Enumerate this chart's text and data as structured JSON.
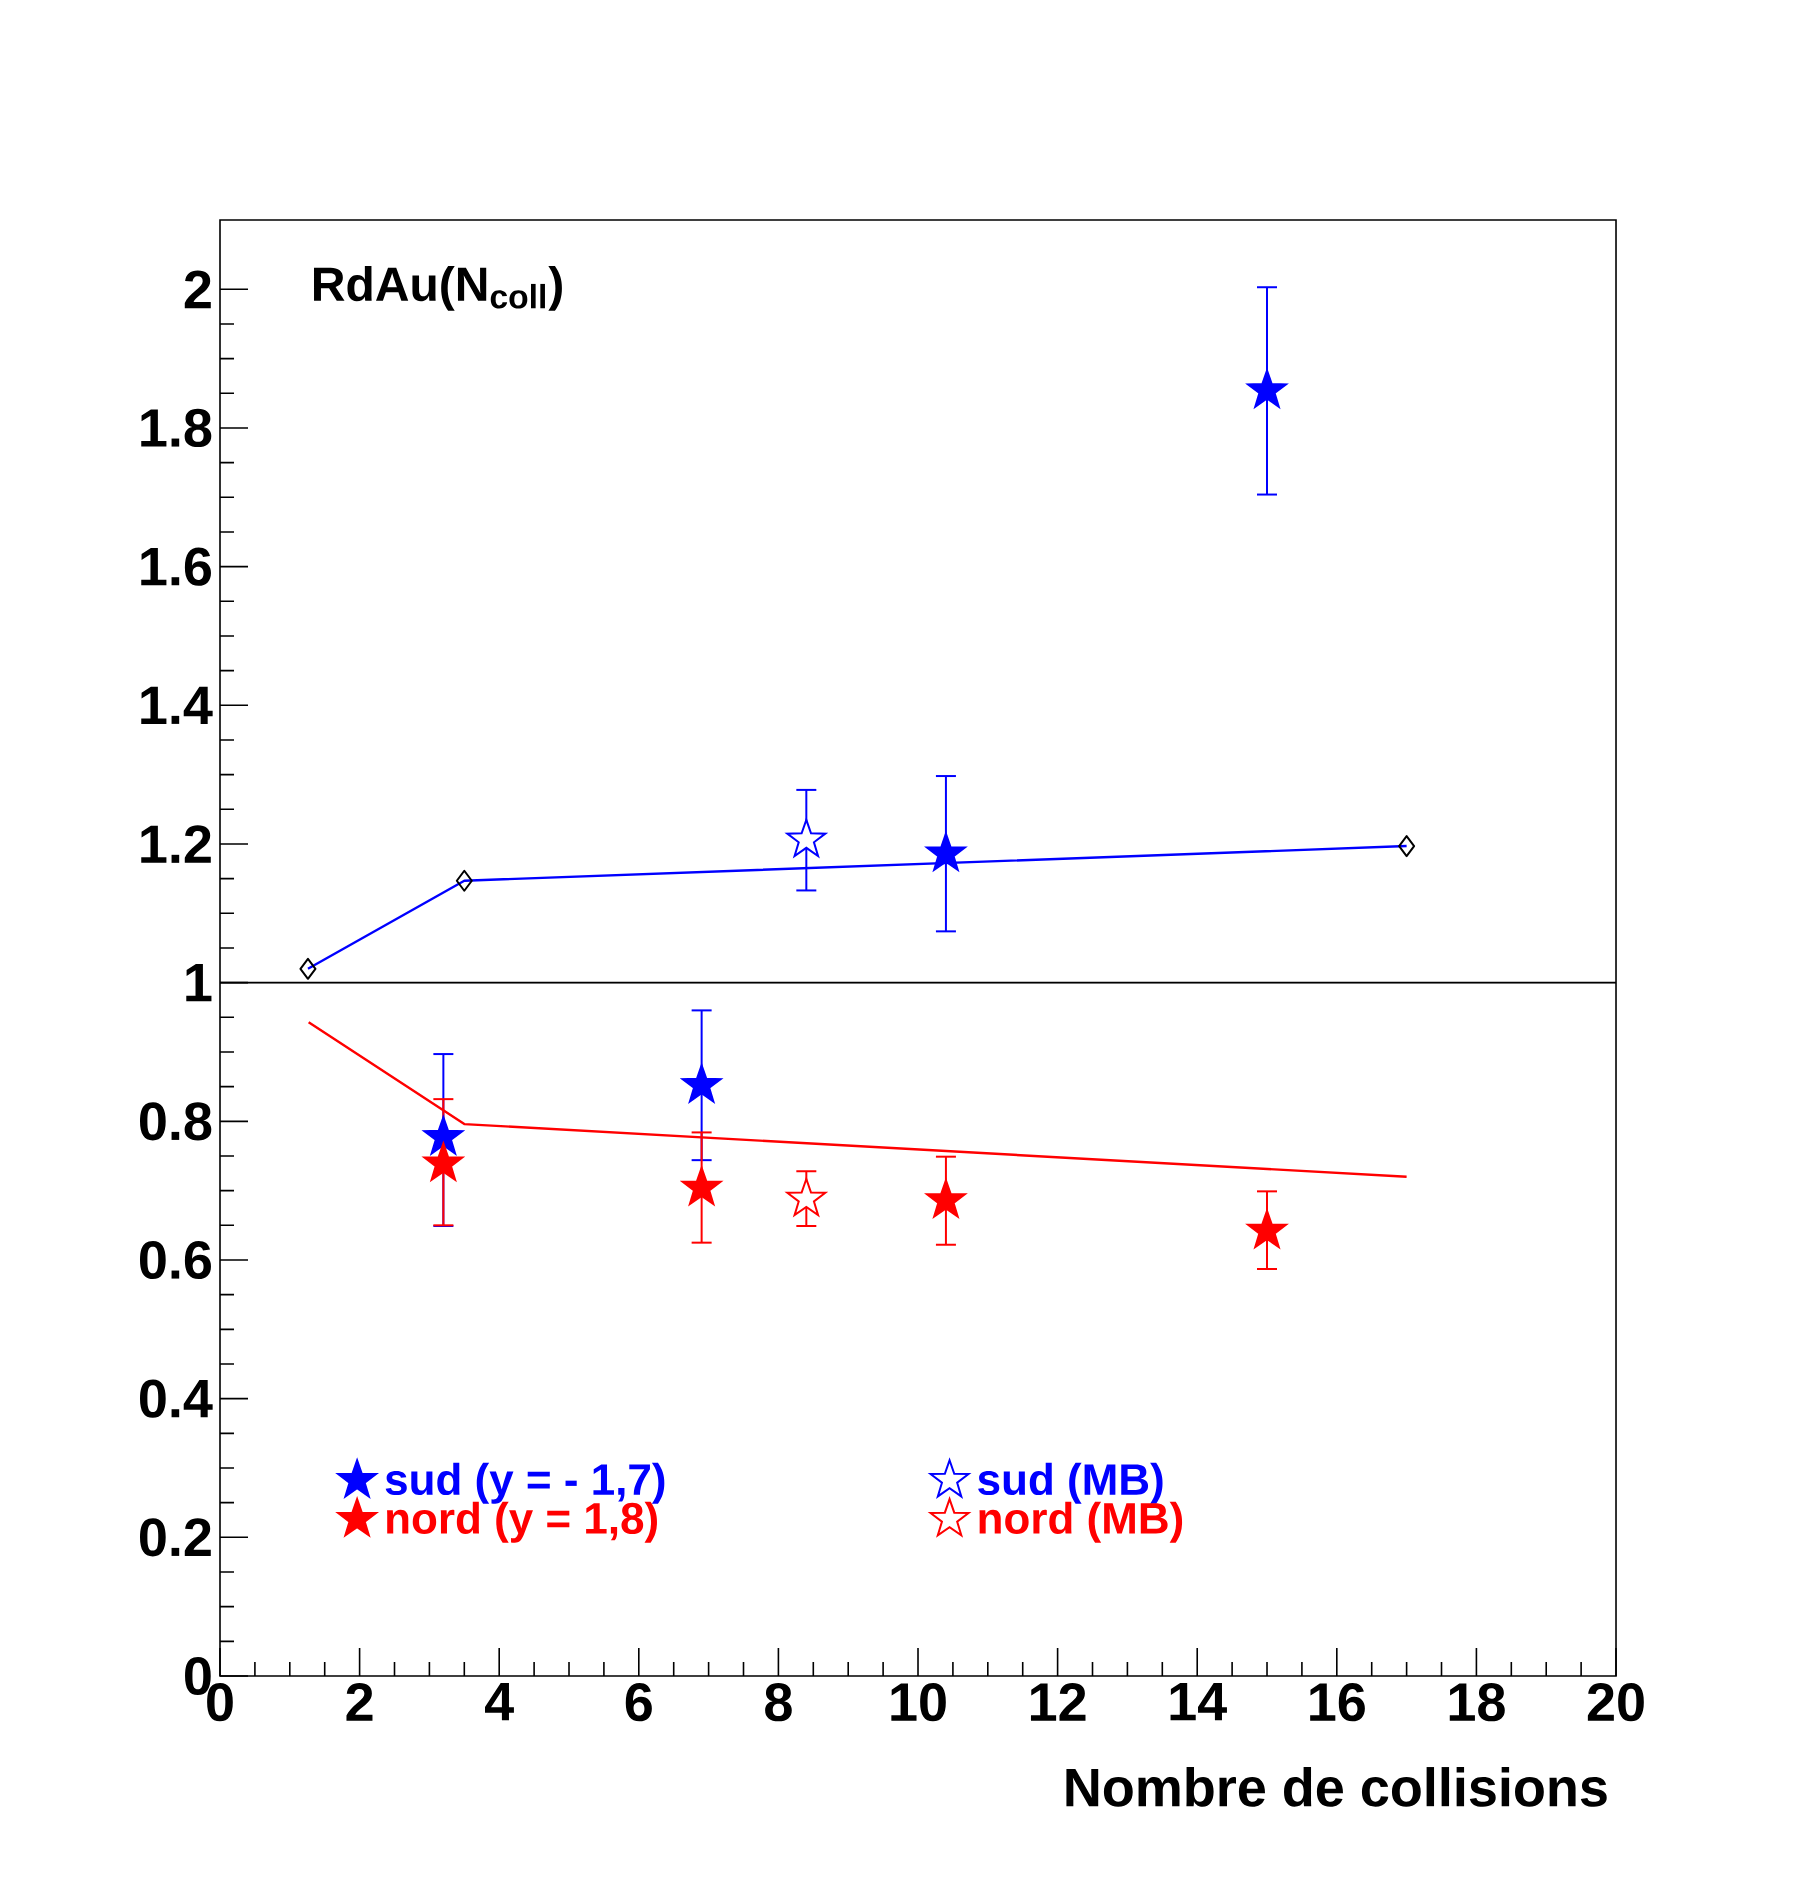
{
  "chart_data": {
    "type": "scatter",
    "title": "RdAu(N$_{coll}$)",
    "xlabel": "Nombre de collisions",
    "xlim": [
      0,
      20
    ],
    "ylim": [
      0,
      2.1
    ],
    "xticks": [
      0,
      2,
      4,
      6,
      8,
      10,
      12,
      14,
      16,
      18,
      20
    ],
    "yticks": [
      0,
      0.2,
      0.4,
      0.6,
      0.8,
      1,
      1.2,
      1.4,
      1.6,
      1.8,
      2
    ],
    "grid": false,
    "legend": "bottom",
    "ref_lines": [
      {
        "axis": "y",
        "value": 1,
        "color": "#000000"
      }
    ],
    "series": [
      {
        "name": "sud (y = - 1,7)",
        "marker": "star",
        "color": "#0000ff",
        "x": [
          3.2,
          6.9,
          10.4,
          15
        ],
        "values": [
          0.777,
          0.852,
          1.186,
          1.854
        ],
        "errors": [
          [
            0.649,
            0.897
          ],
          [
            0.744,
            0.96
          ],
          [
            1.074,
            1.298
          ],
          [
            1.704,
            2.003
          ]
        ]
      },
      {
        "name": "sud (MB)",
        "marker": "star_open",
        "color": "#0000ff",
        "x": [
          8.4
        ],
        "values": [
          1.206
        ],
        "errors": [
          [
            1.133,
            1.278
          ]
        ]
      },
      {
        "name": "nord (y = 1,8)",
        "marker": "star",
        "color": "#ff0000",
        "x": [
          3.2,
          6.9,
          10.4,
          15
        ],
        "values": [
          0.739,
          0.704,
          0.686,
          0.642
        ],
        "errors": [
          [
            0.65,
            0.832
          ],
          [
            0.625,
            0.784
          ],
          [
            0.622,
            0.749
          ],
          [
            0.587,
            0.699
          ]
        ]
      },
      {
        "name": "nord (MB)",
        "marker": "star_open",
        "color": "#ff0000",
        "x": [
          8.4
        ],
        "values": [
          0.688
        ],
        "errors": [
          [
            0.649,
            0.728
          ]
        ]
      },
      {
        "type": "line",
        "marker": "diamond",
        "color": "#0000ff",
        "x": [
          1.26,
          3.5,
          17
        ],
        "values": [
          1.02,
          1.147,
          1.197
        ]
      },
      {
        "type": "line",
        "marker": "none",
        "color": "#ff0000",
        "x": [
          1.27,
          3.5,
          17
        ],
        "values": [
          0.943,
          0.796,
          0.72
        ]
      }
    ]
  }
}
